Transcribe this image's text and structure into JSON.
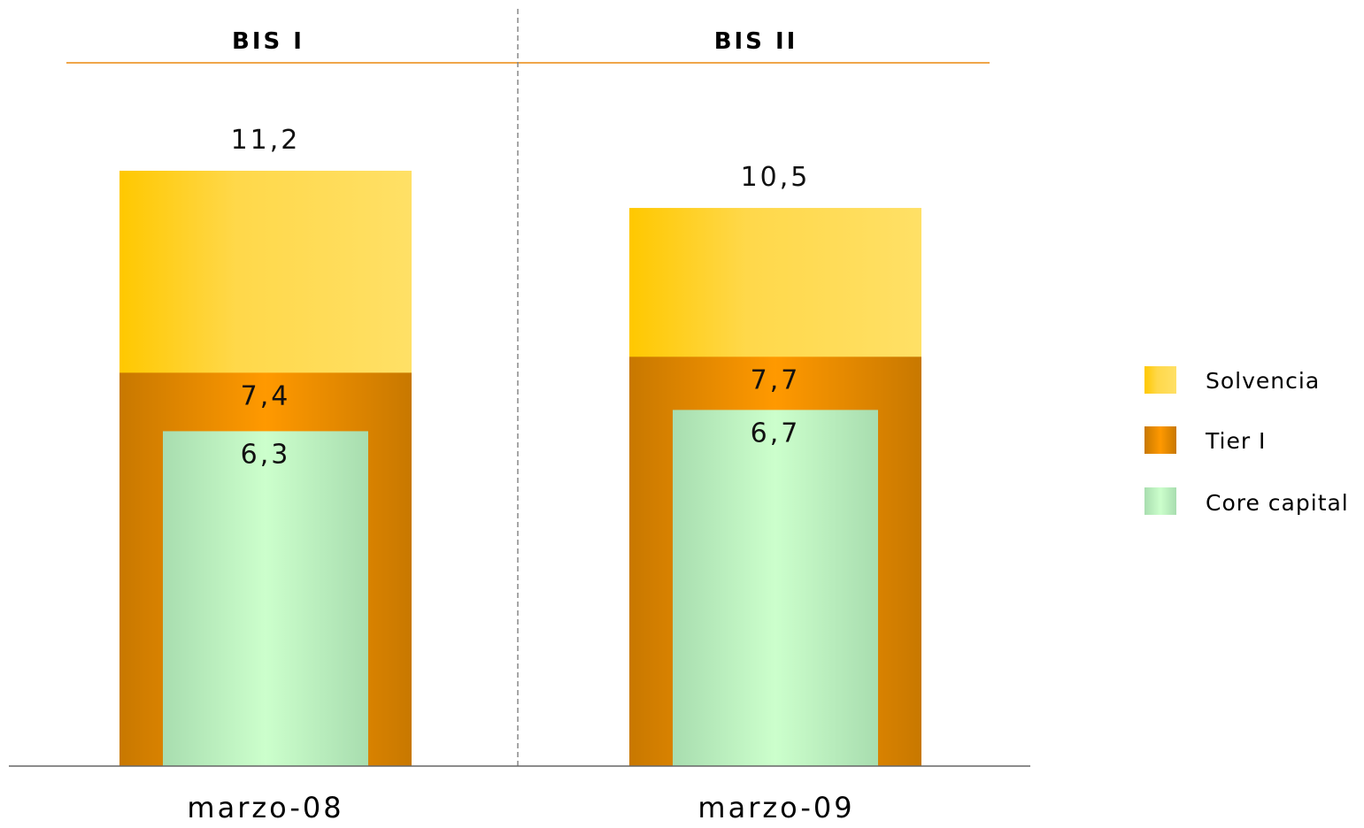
{
  "chart_data": {
    "type": "bar",
    "title": "",
    "sections": [
      "BIS I",
      "BIS II"
    ],
    "categories": [
      "marzo-08",
      "marzo-09"
    ],
    "series": [
      {
        "name": "Solvencia",
        "values": [
          11.2,
          10.5
        ],
        "labels": [
          "11,2",
          "10,5"
        ]
      },
      {
        "name": "Tier I",
        "values": [
          7.4,
          7.7
        ],
        "labels": [
          "7,4",
          "7,7"
        ]
      },
      {
        "name": "Core capital",
        "values": [
          6.3,
          6.7
        ],
        "labels": [
          "6,3",
          "6,7"
        ]
      }
    ],
    "ylim": [
      0,
      11.2
    ],
    "grid": false,
    "legend_position": "right",
    "colors": {
      "solvencia": "#FFD23C",
      "tier": "#E08A00",
      "core": "#BFF5C3",
      "accent_line": "#F0A64A",
      "divider": "#888888",
      "baseline": "#666666"
    }
  }
}
